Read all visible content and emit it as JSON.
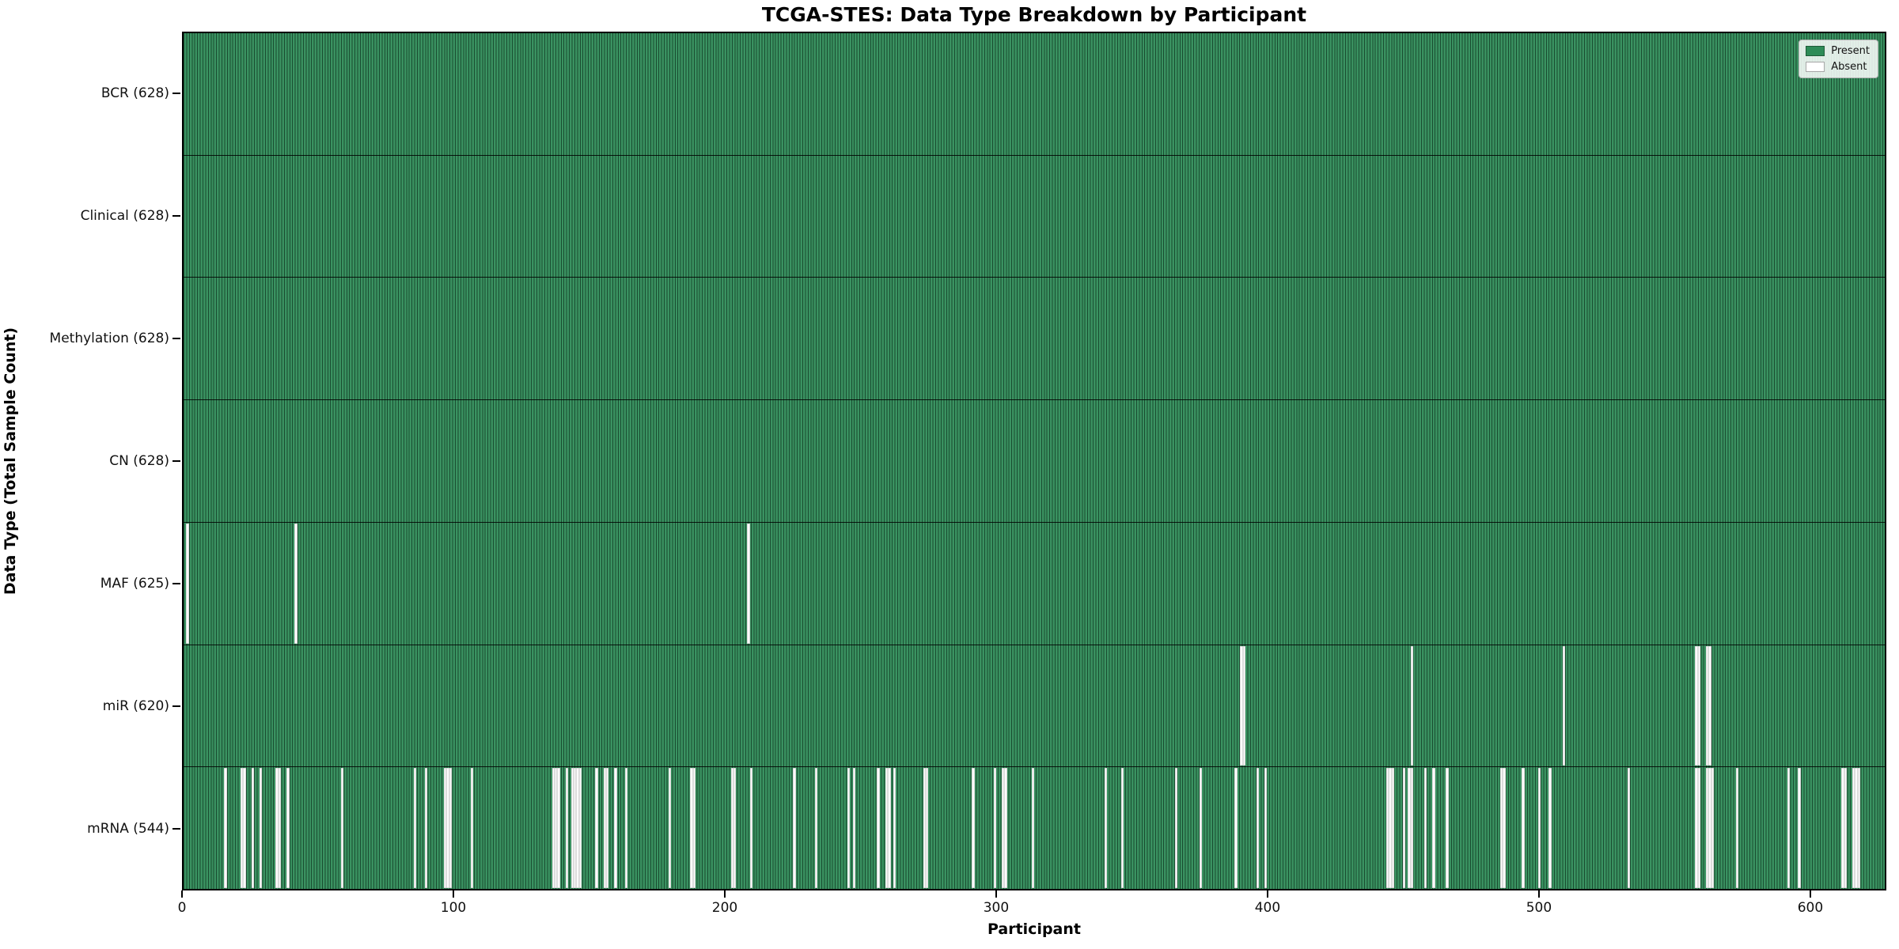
{
  "title": "TCGA-STES: Data Type Breakdown by Participant",
  "chart_data": {
    "type": "heatmap",
    "title": "TCGA-STES: Data Type Breakdown by Participant",
    "xlabel": "Participant",
    "ylabel": "Data Type (Total Sample Count)",
    "n_participants": 628,
    "x_ticks": [
      0,
      100,
      200,
      300,
      400,
      500,
      600
    ],
    "grid": false,
    "legend_position": "upper right",
    "colors": {
      "present": "#2e8b57",
      "absent": "#fbfbfb",
      "bar_edge": "#333333"
    },
    "legend": {
      "items": [
        {
          "label": "Present",
          "color": "#2e8b57"
        },
        {
          "label": "Absent",
          "color": "#ffffff"
        }
      ]
    },
    "rows": [
      {
        "name": "BCR",
        "label": "BCR (628)",
        "present_count": 628,
        "absent_participants": []
      },
      {
        "name": "Clinical",
        "label": "Clinical (628)",
        "present_count": 628,
        "absent_participants": []
      },
      {
        "name": "Methylation",
        "label": "Methylation (628)",
        "present_count": 628,
        "absent_participants": []
      },
      {
        "name": "CN",
        "label": "CN (628)",
        "present_count": 628,
        "absent_participants": []
      },
      {
        "name": "MAF",
        "label": "MAF (625)",
        "present_count": 625,
        "absent_participants": [
          1,
          41,
          208
        ]
      },
      {
        "name": "miR",
        "label": "miR (620)",
        "present_count": 620,
        "absent_participants": [
          390,
          391,
          453,
          509,
          558,
          559,
          562,
          563
        ]
      },
      {
        "name": "mRNA",
        "label": "mRNA (544)",
        "present_count": 544,
        "absent_participants": [
          15,
          21,
          22,
          25,
          28,
          34,
          35,
          38,
          58,
          85,
          89,
          96,
          97,
          98,
          106,
          136,
          137,
          138,
          141,
          143,
          144,
          145,
          146,
          152,
          155,
          156,
          159,
          163,
          179,
          187,
          188,
          202,
          203,
          209,
          225,
          233,
          245,
          247,
          256,
          259,
          260,
          262,
          273,
          274,
          291,
          299,
          302,
          303,
          313,
          340,
          346,
          366,
          375,
          388,
          396,
          399,
          444,
          445,
          446,
          450,
          452,
          453,
          458,
          461,
          466,
          486,
          487,
          494,
          500,
          504,
          533,
          558,
          559,
          562,
          563,
          564,
          573,
          592,
          596,
          612,
          613,
          616,
          617,
          618
        ]
      }
    ]
  }
}
